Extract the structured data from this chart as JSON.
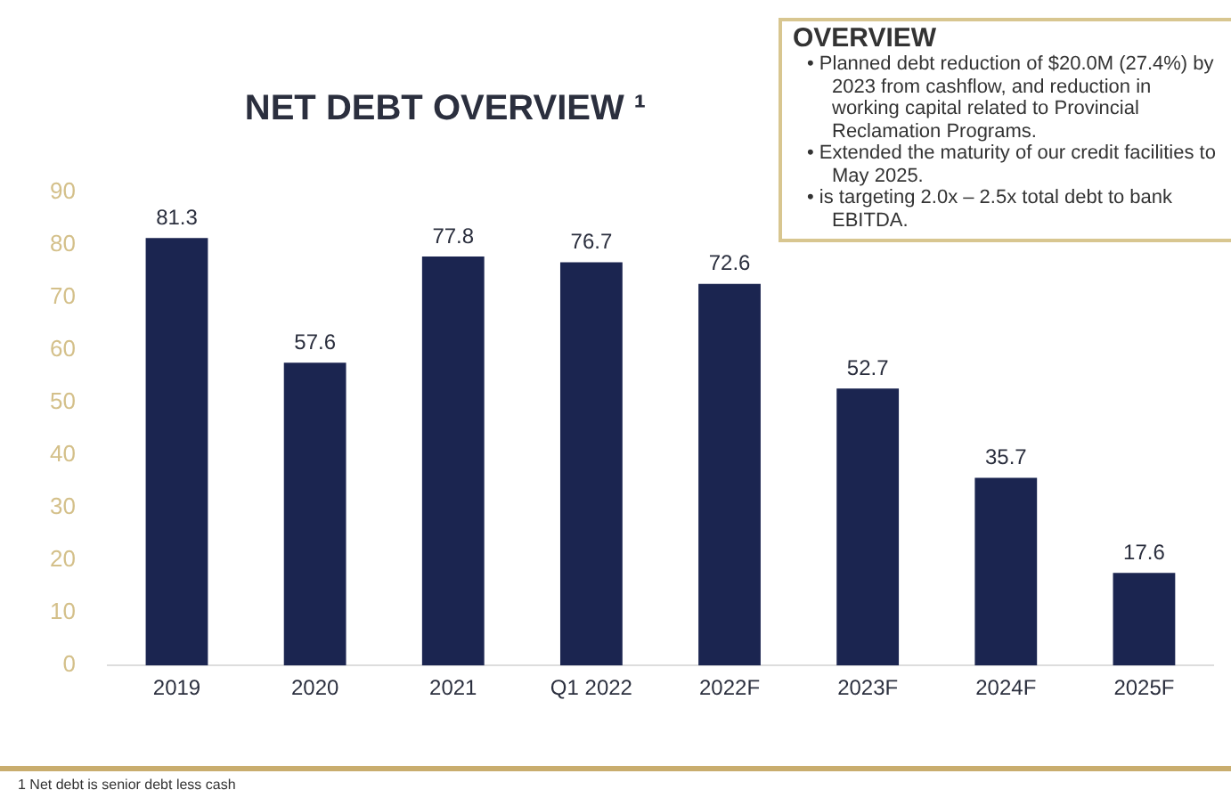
{
  "chart_data": {
    "type": "bar",
    "title": "NET DEBT OVERVIEW ¹",
    "categories": [
      "2019",
      "2020",
      "2021",
      "Q1 2022",
      "2022F",
      "2023F",
      "2024F",
      "2025F"
    ],
    "values": [
      81.3,
      57.6,
      77.8,
      76.7,
      72.6,
      52.7,
      35.7,
      17.6
    ],
    "color": "#1b2550",
    "ylim": [
      0,
      90
    ],
    "yticks": [
      0,
      10,
      20,
      30,
      40,
      50,
      60,
      70,
      80,
      90
    ],
    "grid": false,
    "data_labels": true,
    "annotations": [
      "OVERVIEW",
      "• Planned debt reduction of $20.0M (27.4%) by 2023 from cashflow, and reduction in working capital related to Provincial Reclamation Programs.",
      "• Extended the maturity of our credit facilities to May 2025.",
      "• is targeting 2.0x – 2.5x total debt to bank EBITDA.",
      "1     Net debt is senior debt less cash"
    ]
  }
}
